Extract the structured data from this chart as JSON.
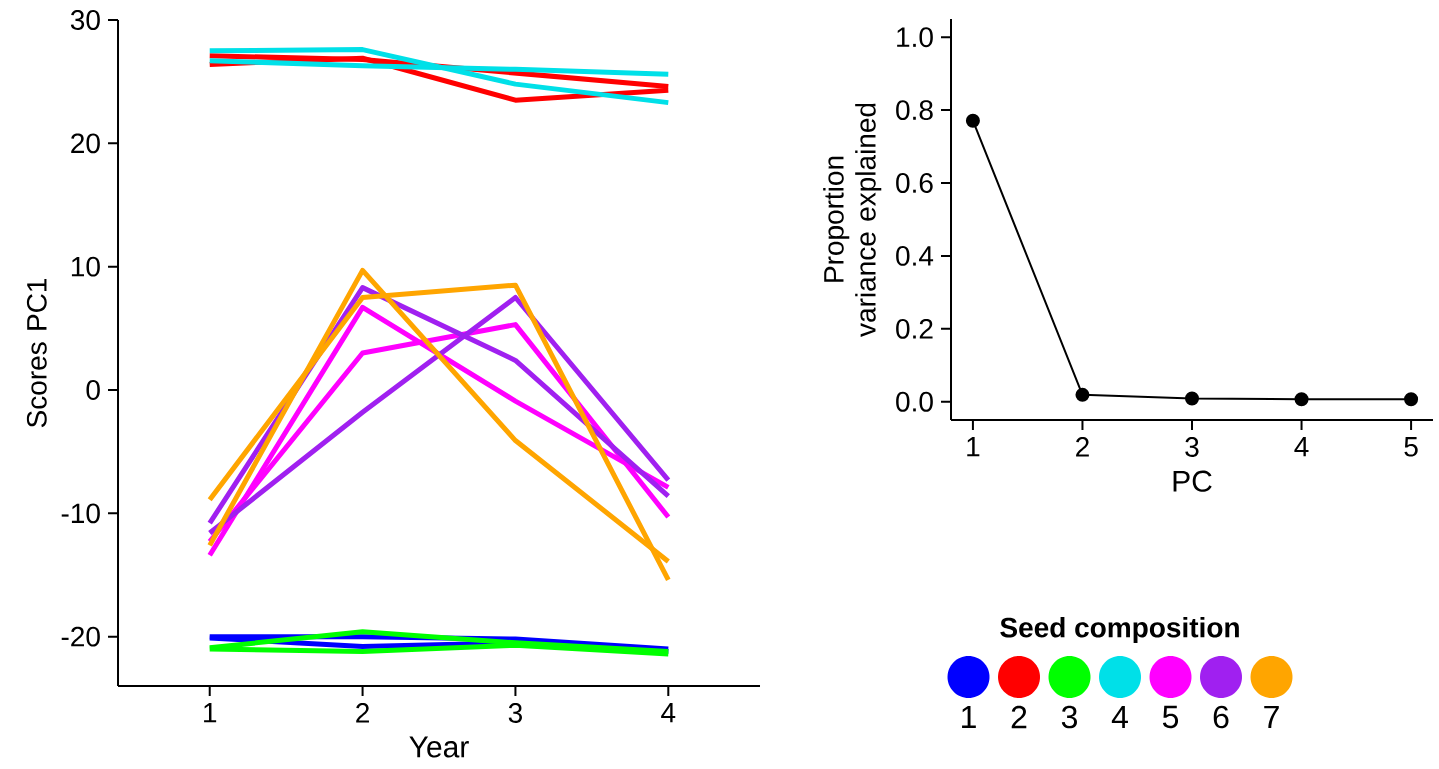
{
  "chart_data": [
    {
      "type": "line",
      "xlabel": "Year",
      "ylabel": "Scores PC1",
      "legend_title": "Seed composition",
      "legend": "right",
      "x": [
        1,
        2,
        3,
        4
      ],
      "xlim": [
        0.4,
        4.6
      ],
      "xticks": [
        1,
        2,
        3,
        4
      ],
      "ylim": [
        -24,
        30
      ],
      "yticks": [
        -20,
        -10,
        0,
        10,
        20,
        30
      ],
      "series": [
        {
          "name": "1",
          "color": "#0000ff",
          "values": [
            -20.0,
            -20.0,
            -20.2,
            -21.0
          ]
        },
        {
          "color": "#0000ff",
          "values": [
            -20.1,
            -20.8,
            -20.5,
            -21.2
          ]
        },
        {
          "name": "2",
          "color": "#ff0000",
          "values": [
            26.4,
            26.9,
            23.5,
            24.3
          ]
        },
        {
          "color": "#ff0000",
          "values": [
            27.1,
            26.8,
            25.7,
            24.6
          ]
        },
        {
          "name": "3",
          "color": "#00ff00",
          "values": [
            -20.9,
            -19.6,
            -20.5,
            -21.2
          ]
        },
        {
          "color": "#00ff00",
          "values": [
            -21.0,
            -21.2,
            -20.7,
            -21.4
          ]
        },
        {
          "name": "4",
          "color": "#00e0e8",
          "values": [
            27.5,
            27.6,
            24.8,
            23.3
          ]
        },
        {
          "color": "#00e0e8",
          "values": [
            26.7,
            26.3,
            26.0,
            25.6
          ]
        },
        {
          "name": "5",
          "color": "#ff00ff",
          "values": [
            -13.4,
            6.7,
            -0.9,
            -7.9
          ]
        },
        {
          "color": "#ff00ff",
          "values": [
            -12.3,
            3.0,
            5.3,
            -10.3
          ]
        },
        {
          "name": "6",
          "color": "#a020f0",
          "values": [
            -10.8,
            8.3,
            2.4,
            -8.6
          ]
        },
        {
          "color": "#a020f0",
          "values": [
            -11.6,
            -1.8,
            7.5,
            -7.3
          ]
        },
        {
          "name": "7",
          "color": "#ffa500",
          "values": [
            -12.6,
            9.7,
            -4.1,
            -13.9
          ]
        },
        {
          "color": "#ffa500",
          "values": [
            -8.9,
            7.5,
            8.5,
            -15.4
          ]
        }
      ]
    },
    {
      "type": "line",
      "xlabel": "PC",
      "ylabel": "Proportion variance explained",
      "marker": "circle",
      "x": [
        1,
        2,
        3,
        4,
        5
      ],
      "xlim": [
        0.8,
        5.2
      ],
      "xticks": [
        1,
        2,
        3,
        4,
        5
      ],
      "ylim": [
        -0.05,
        1.05
      ],
      "yticks": [
        {
          "value": 0,
          "label": "0.0"
        },
        0.2,
        0.4,
        0.6,
        0.8,
        {
          "value": 1,
          "label": "1.0"
        }
      ],
      "series": [
        {
          "color": "#000000",
          "values": [
            0.771,
            0.019,
            0.009,
            0.007,
            0.007
          ]
        }
      ]
    }
  ]
}
